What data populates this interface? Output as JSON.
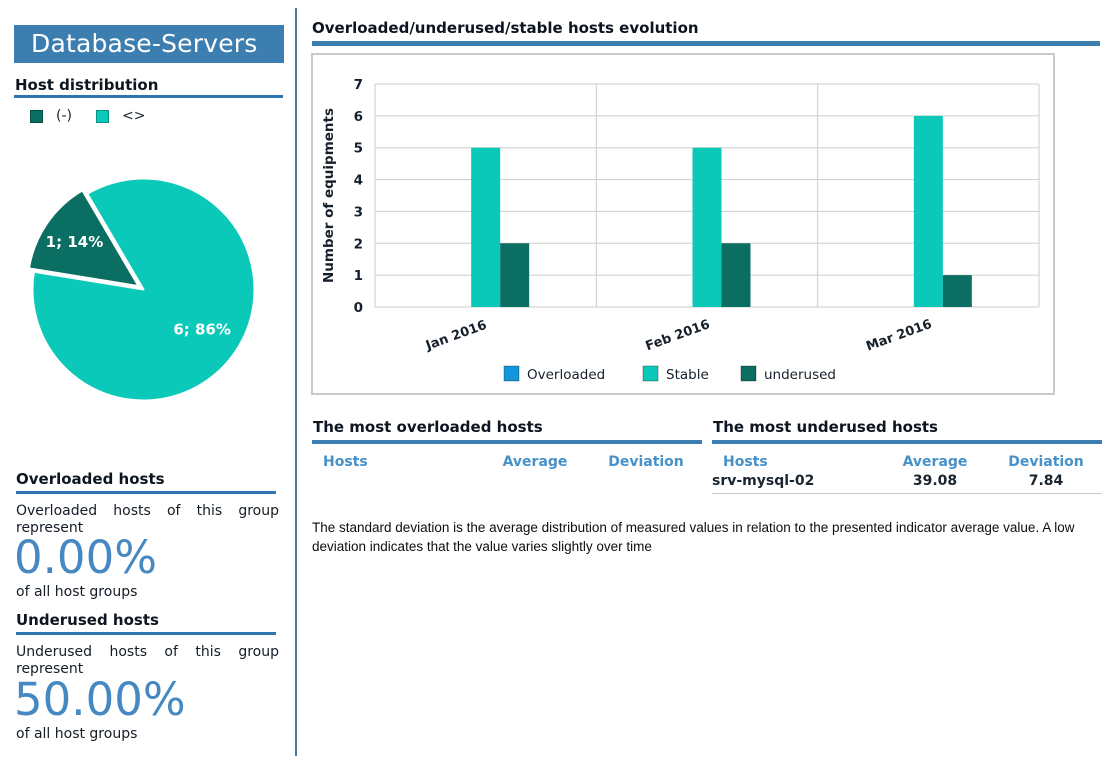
{
  "sidebar": {
    "title": "Database-Servers",
    "host_distribution": {
      "heading": "Host distribution",
      "legend": [
        {
          "label": "(-)",
          "color": "#0b6e62"
        },
        {
          "label": "<>",
          "color": "#0bc9b8"
        }
      ]
    },
    "overloaded": {
      "heading": "Overloaded hosts",
      "text": "Overloaded hosts of this group represent",
      "value": "0.00%",
      "caption": "of all host groups"
    },
    "underused": {
      "heading": "Underused hosts",
      "text": "Underused hosts of this group represent",
      "value": "50.00%",
      "caption": "of all host groups"
    }
  },
  "main": {
    "chart_title": "Overloaded/underused/stable hosts evolution",
    "overloaded_table": {
      "title": "The most overloaded hosts",
      "columns": [
        "Hosts",
        "Average",
        "Deviation"
      ],
      "rows": []
    },
    "underused_table": {
      "title": "The most underused hosts",
      "columns": [
        "Hosts",
        "Average",
        "Deviation"
      ],
      "rows": [
        {
          "host": "srv-mysql-02",
          "average": "39.08",
          "deviation": "7.84"
        }
      ]
    },
    "note": "The standard deviation is the average distribution of measured values in relation to the presented indicator average value. A low  deviation indicates that the value varies slightly over time"
  },
  "colors": {
    "steel_blue": "#3d7eb0",
    "rule_blue": "#2f76b0",
    "big_number_blue": "#4688c2",
    "table_header_blue": "#4791ca",
    "overloaded_blue": "#1496dc",
    "stable_teal": "#0bc9b8",
    "underused_dark_teal": "#0b6e62",
    "grid_gray": "#cdcdcd"
  },
  "chart_data": [
    {
      "type": "pie",
      "title": "Host distribution",
      "labels": [
        "(-)",
        "<>"
      ],
      "values": [
        1,
        6
      ],
      "percents": [
        14,
        86
      ],
      "slice_labels": [
        "1; 14%",
        "6; 86%"
      ],
      "colors": [
        "#0b6e62",
        "#0bc9b8"
      ],
      "start_angle_deg": 120.4,
      "exploded_slice": 0
    },
    {
      "type": "bar",
      "title": "Overloaded/underused/stable hosts evolution",
      "categories": [
        "Jan 2016",
        "Feb 2016",
        "Mar 2016"
      ],
      "series": [
        {
          "name": "Overloaded",
          "color": "#1496dc",
          "values": [
            0,
            0,
            0
          ]
        },
        {
          "name": "Stable",
          "color": "#0bc9b8",
          "values": [
            5,
            5,
            6
          ]
        },
        {
          "name": "underused",
          "color": "#0b6e62",
          "values": [
            2,
            2,
            1
          ]
        }
      ],
      "xlabel": "",
      "ylabel": "Number of equipments",
      "ylim": [
        0,
        7
      ],
      "yticks": [
        0,
        1,
        2,
        3,
        4,
        5,
        6,
        7
      ],
      "grid": true,
      "legend_position": "bottom"
    }
  ]
}
